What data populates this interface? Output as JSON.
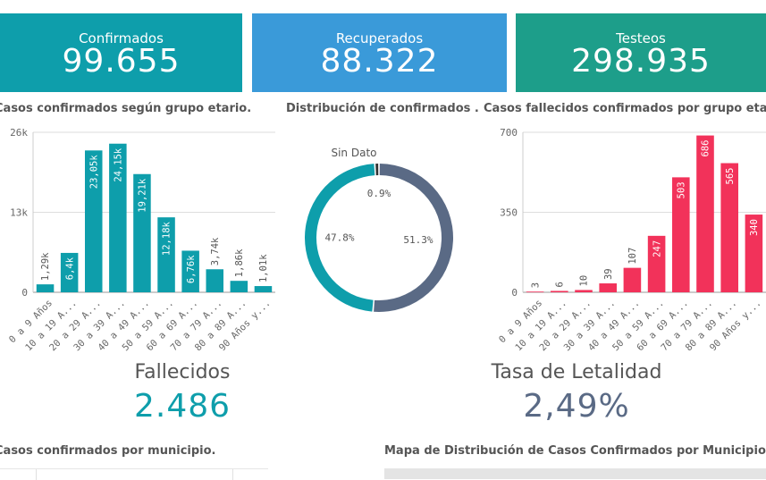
{
  "kpis": {
    "confirmados": {
      "label": "Confirmados",
      "value": "99.655",
      "color": "#0e9eab"
    },
    "recuperados": {
      "label": "Recuperados",
      "value": "88.322",
      "color": "#3a9ad9"
    },
    "testeos": {
      "label": "Testeos",
      "value": "298.935",
      "color": "#1d9e8a"
    }
  },
  "titles": {
    "age_confirmed": "Casos confirmados según grupo etario.",
    "distribution": "Distribución de confirmados ...",
    "age_deaths": "Casos fallecidos confirmados por grupo etario.",
    "municipality": "Casos confirmados por municipio.",
    "map": "Mapa de Distribución de Casos Confirmados por Municipio."
  },
  "fallecidos": {
    "label": "Fallecidos",
    "value": "2.486",
    "color": "#0e9eab"
  },
  "letalidad": {
    "label": "Tasa de Letalidad",
    "value": "2,49%",
    "color": "#5a6a85"
  },
  "chart_data": [
    {
      "type": "bar",
      "title": "Casos confirmados según grupo etario.",
      "color": "#0e9eab",
      "categories": [
        "0 a 9 Años",
        "10 a 19 A...",
        "20 a 29 A...",
        "30 a 39 A...",
        "40 a 49 A...",
        "50 a 59 A...",
        "60 a 69 A...",
        "70 a 79 A...",
        "80 a 89 A...",
        "90 Años y..."
      ],
      "values": [
        1290,
        6400,
        23050,
        24150,
        19210,
        12180,
        6760,
        3740,
        1860,
        1010
      ],
      "value_labels": [
        "1,29k",
        "6,4k",
        "23,05k",
        "24,15k",
        "19,21k",
        "12,18k",
        "6,76k",
        "3,74k",
        "1,86k",
        "1,01k"
      ],
      "yticks": [
        "0",
        "13k",
        "26k"
      ],
      "ylim": [
        0,
        26000
      ],
      "grid": true
    },
    {
      "type": "pie",
      "title": "Distribución de confirmados ...",
      "slices": [
        {
          "name": "",
          "value": 51.3,
          "label": "51.3%",
          "color": "#5a6a85"
        },
        {
          "name": "",
          "value": 47.8,
          "label": "47.8%",
          "color": "#0e9eab"
        },
        {
          "name": "Sin Dato",
          "value": 0.9,
          "label": "0.9%",
          "color": "#333333"
        }
      ]
    },
    {
      "type": "bar",
      "title": "Casos fallecidos confirmados por grupo etario.",
      "color": "#f2325a",
      "categories": [
        "0 a 9 Años",
        "10 a 19 A...",
        "20 a 29 A...",
        "30 a 39 A...",
        "40 a 49 A...",
        "50 a 59 A...",
        "60 a 69 A...",
        "70 a 79 A...",
        "80 a 89 A...",
        "90 Años y..."
      ],
      "values": [
        3,
        6,
        10,
        39,
        107,
        247,
        503,
        686,
        565,
        340
      ],
      "value_labels": [
        "3",
        "6",
        "10",
        "39",
        "107",
        "247",
        "503",
        "686",
        "565",
        "340"
      ],
      "yticks": [
        "0",
        "350",
        "700"
      ],
      "ylim": [
        0,
        700
      ],
      "grid": true
    }
  ]
}
